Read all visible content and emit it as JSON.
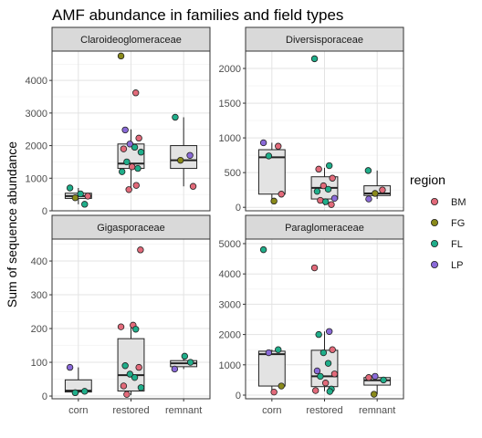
{
  "chart_data": {
    "type": "box-jitter-facet",
    "title": "AMF abundance in families and field types",
    "xlabel": "",
    "ylabel": "Sum of sequence abundance",
    "categories": [
      "corn",
      "restored",
      "remnant"
    ],
    "legend": {
      "title": "region",
      "placement": "right",
      "items": [
        {
          "label": "BM",
          "color": "#e26a7a"
        },
        {
          "label": "FG",
          "color": "#8a8a1a"
        },
        {
          "label": "FL",
          "color": "#1fae8a"
        },
        {
          "label": "LP",
          "color": "#8a6ad8"
        }
      ]
    },
    "panels": [
      {
        "name": "Claroideoglomeraceae",
        "ylim": [
          0,
          4900
        ],
        "yticks": [
          0,
          1000,
          2000,
          3000,
          4000
        ],
        "boxes": [
          {
            "category": "corn",
            "q1": 380,
            "median": 450,
            "q3": 540,
            "lower": 200,
            "upper": 700
          },
          {
            "category": "restored",
            "q1": 1300,
            "median": 1450,
            "q3": 2050,
            "lower": 620,
            "upper": 2500
          },
          {
            "category": "remnant",
            "q1": 1300,
            "median": 1550,
            "q3": 2000,
            "lower": 750,
            "upper": 2870
          }
        ],
        "points": [
          {
            "category": "corn",
            "region": "FL",
            "value": 700
          },
          {
            "category": "corn",
            "region": "FL",
            "value": 200
          },
          {
            "category": "corn",
            "region": "FG",
            "value": 400
          },
          {
            "category": "corn",
            "region": "BM",
            "value": 450
          },
          {
            "category": "corn",
            "region": "FL",
            "value": 520
          },
          {
            "category": "restored",
            "region": "FG",
            "value": 4750
          },
          {
            "category": "restored",
            "region": "BM",
            "value": 3620
          },
          {
            "category": "restored",
            "region": "LP",
            "value": 2480
          },
          {
            "category": "restored",
            "region": "BM",
            "value": 2230
          },
          {
            "category": "restored",
            "region": "LP",
            "value": 2050
          },
          {
            "category": "restored",
            "region": "FL",
            "value": 1950
          },
          {
            "category": "restored",
            "region": "BM",
            "value": 1900
          },
          {
            "category": "restored",
            "region": "FL",
            "value": 1800
          },
          {
            "category": "restored",
            "region": "FL",
            "value": 1500
          },
          {
            "category": "restored",
            "region": "BM",
            "value": 1350
          },
          {
            "category": "restored",
            "region": "FL",
            "value": 1300
          },
          {
            "category": "restored",
            "region": "FL",
            "value": 1200
          },
          {
            "category": "restored",
            "region": "BM",
            "value": 780
          },
          {
            "category": "restored",
            "region": "BM",
            "value": 650
          },
          {
            "category": "remnant",
            "region": "FL",
            "value": 2870
          },
          {
            "category": "remnant",
            "region": "LP",
            "value": 1700
          },
          {
            "category": "remnant",
            "region": "FG",
            "value": 1550
          },
          {
            "category": "remnant",
            "region": "BM",
            "value": 750
          }
        ]
      },
      {
        "name": "Diversisporaceae",
        "ylim": [
          -50,
          2250
        ],
        "yticks": [
          0,
          500,
          1000,
          1500,
          2000
        ],
        "boxes": [
          {
            "category": "corn",
            "q1": 190,
            "median": 720,
            "q3": 830,
            "lower": 90,
            "upper": 930
          },
          {
            "category": "restored",
            "q1": 120,
            "median": 280,
            "q3": 440,
            "lower": 30,
            "upper": 570
          },
          {
            "category": "remnant",
            "q1": 170,
            "median": 200,
            "q3": 310,
            "lower": 120,
            "upper": 530
          }
        ],
        "points": [
          {
            "category": "corn",
            "region": "LP",
            "value": 930
          },
          {
            "category": "corn",
            "region": "BM",
            "value": 880
          },
          {
            "category": "corn",
            "region": "FL",
            "value": 740
          },
          {
            "category": "corn",
            "region": "BM",
            "value": 190
          },
          {
            "category": "corn",
            "region": "FG",
            "value": 90
          },
          {
            "category": "restored",
            "region": "FL",
            "value": 2140
          },
          {
            "category": "restored",
            "region": "FL",
            "value": 600
          },
          {
            "category": "restored",
            "region": "BM",
            "value": 550
          },
          {
            "category": "restored",
            "region": "BM",
            "value": 420
          },
          {
            "category": "restored",
            "region": "BM",
            "value": 310
          },
          {
            "category": "restored",
            "region": "FL",
            "value": 260
          },
          {
            "category": "restored",
            "region": "FL",
            "value": 230
          },
          {
            "category": "restored",
            "region": "LP",
            "value": 130
          },
          {
            "category": "restored",
            "region": "BM",
            "value": 100
          },
          {
            "category": "restored",
            "region": "FL",
            "value": 80
          },
          {
            "category": "restored",
            "region": "BM",
            "value": 40
          },
          {
            "category": "remnant",
            "region": "FL",
            "value": 530
          },
          {
            "category": "remnant",
            "region": "BM",
            "value": 250
          },
          {
            "category": "remnant",
            "region": "FG",
            "value": 200
          },
          {
            "category": "remnant",
            "region": "LP",
            "value": 120
          }
        ]
      },
      {
        "name": "Gigasporaceae",
        "ylim": [
          -8,
          465
        ],
        "yticks": [
          0,
          100,
          200,
          300,
          400
        ],
        "boxes": [
          {
            "category": "corn",
            "q1": 12,
            "median": 16,
            "q3": 48,
            "lower": 8,
            "upper": 85
          },
          {
            "category": "restored",
            "q1": 15,
            "median": 62,
            "q3": 170,
            "lower": 3,
            "upper": 210
          },
          {
            "category": "remnant",
            "q1": 87,
            "median": 97,
            "q3": 105,
            "lower": 80,
            "upper": 118
          }
        ],
        "points": [
          {
            "category": "corn",
            "region": "LP",
            "value": 85
          },
          {
            "category": "corn",
            "region": "FL",
            "value": 14
          },
          {
            "category": "corn",
            "region": "FL",
            "value": 10
          },
          {
            "category": "restored",
            "region": "BM",
            "value": 433
          },
          {
            "category": "restored",
            "region": "BM",
            "value": 210
          },
          {
            "category": "restored",
            "region": "BM",
            "value": 205
          },
          {
            "category": "restored",
            "region": "FL",
            "value": 198
          },
          {
            "category": "restored",
            "region": "FL",
            "value": 90
          },
          {
            "category": "restored",
            "region": "BM",
            "value": 85
          },
          {
            "category": "restored",
            "region": "FL",
            "value": 65
          },
          {
            "category": "restored",
            "region": "FL",
            "value": 55
          },
          {
            "category": "restored",
            "region": "BM",
            "value": 30
          },
          {
            "category": "restored",
            "region": "FL",
            "value": 25
          },
          {
            "category": "restored",
            "region": "BM",
            "value": 5
          },
          {
            "category": "remnant",
            "region": "FL",
            "value": 118
          },
          {
            "category": "remnant",
            "region": "FL",
            "value": 100
          },
          {
            "category": "remnant",
            "region": "LP",
            "value": 80
          }
        ]
      },
      {
        "name": "Paraglomeraceae",
        "ylim": [
          -120,
          5150
        ],
        "yticks": [
          0,
          1000,
          2000,
          3000,
          4000,
          5000
        ],
        "boxes": [
          {
            "category": "corn",
            "q1": 300,
            "median": 1350,
            "q3": 1450,
            "lower": 100,
            "upper": 1500
          },
          {
            "category": "restored",
            "q1": 280,
            "median": 620,
            "q3": 1480,
            "lower": 130,
            "upper": 2100
          },
          {
            "category": "remnant",
            "q1": 330,
            "median": 490,
            "q3": 580,
            "lower": 30,
            "upper": 620
          }
        ],
        "points": [
          {
            "category": "corn",
            "region": "FL",
            "value": 4800
          },
          {
            "category": "corn",
            "region": "FL",
            "value": 1500
          },
          {
            "category": "corn",
            "region": "LP",
            "value": 1400
          },
          {
            "category": "corn",
            "region": "FG",
            "value": 300
          },
          {
            "category": "corn",
            "region": "BM",
            "value": 100
          },
          {
            "category": "restored",
            "region": "BM",
            "value": 4200
          },
          {
            "category": "restored",
            "region": "LP",
            "value": 2100
          },
          {
            "category": "restored",
            "region": "FL",
            "value": 2000
          },
          {
            "category": "restored",
            "region": "BM",
            "value": 1500
          },
          {
            "category": "restored",
            "region": "FL",
            "value": 1400
          },
          {
            "category": "restored",
            "region": "FL",
            "value": 1050
          },
          {
            "category": "restored",
            "region": "LP",
            "value": 800
          },
          {
            "category": "restored",
            "region": "BM",
            "value": 700
          },
          {
            "category": "restored",
            "region": "FL",
            "value": 620
          },
          {
            "category": "restored",
            "region": "BM",
            "value": 400
          },
          {
            "category": "restored",
            "region": "FL",
            "value": 200
          },
          {
            "category": "restored",
            "region": "BM",
            "value": 150
          },
          {
            "category": "restored",
            "region": "FL",
            "value": 120
          },
          {
            "category": "remnant",
            "region": "LP",
            "value": 620
          },
          {
            "category": "remnant",
            "region": "BM",
            "value": 580
          },
          {
            "category": "remnant",
            "region": "FL",
            "value": 500
          },
          {
            "category": "remnant",
            "region": "FG",
            "value": 30
          }
        ]
      }
    ]
  }
}
